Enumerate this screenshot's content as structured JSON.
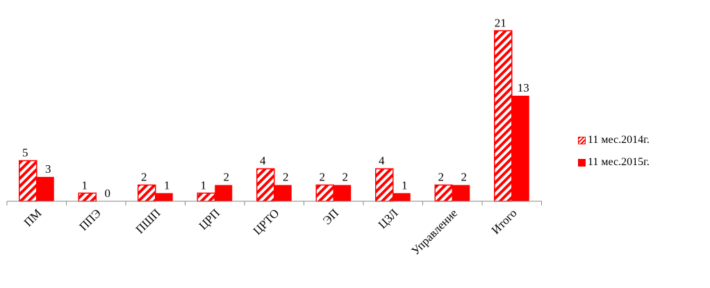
{
  "chart_data": {
    "type": "bar",
    "categories": [
      "ПМ",
      "ППЭ",
      "ПШП",
      "ЦРП",
      "ЦРТО",
      "ЭП",
      "ЦЗЛ",
      "Управление",
      "Итого"
    ],
    "series": [
      {
        "name": "11 мес.2014г.",
        "values": [
          5,
          1,
          2,
          1,
          4,
          2,
          4,
          2,
          21
        ],
        "fill": "hatched",
        "color": "#ff0000"
      },
      {
        "name": "11 мес.2015г.",
        "values": [
          3,
          0,
          1,
          2,
          2,
          2,
          1,
          2,
          13
        ],
        "fill": "solid",
        "color": "#ff0000"
      }
    ],
    "data_labels": [
      [
        "5",
        "1",
        "2",
        "1",
        "4",
        "2",
        "4",
        "2",
        "21"
      ],
      [
        "3",
        "0",
        "1",
        "2",
        "2",
        "2",
        "1",
        "2",
        "13"
      ]
    ],
    "title": "",
    "xlabel": "",
    "ylabel": "",
    "ylim": [
      0,
      21
    ],
    "grid": false,
    "legend_position": "right"
  }
}
